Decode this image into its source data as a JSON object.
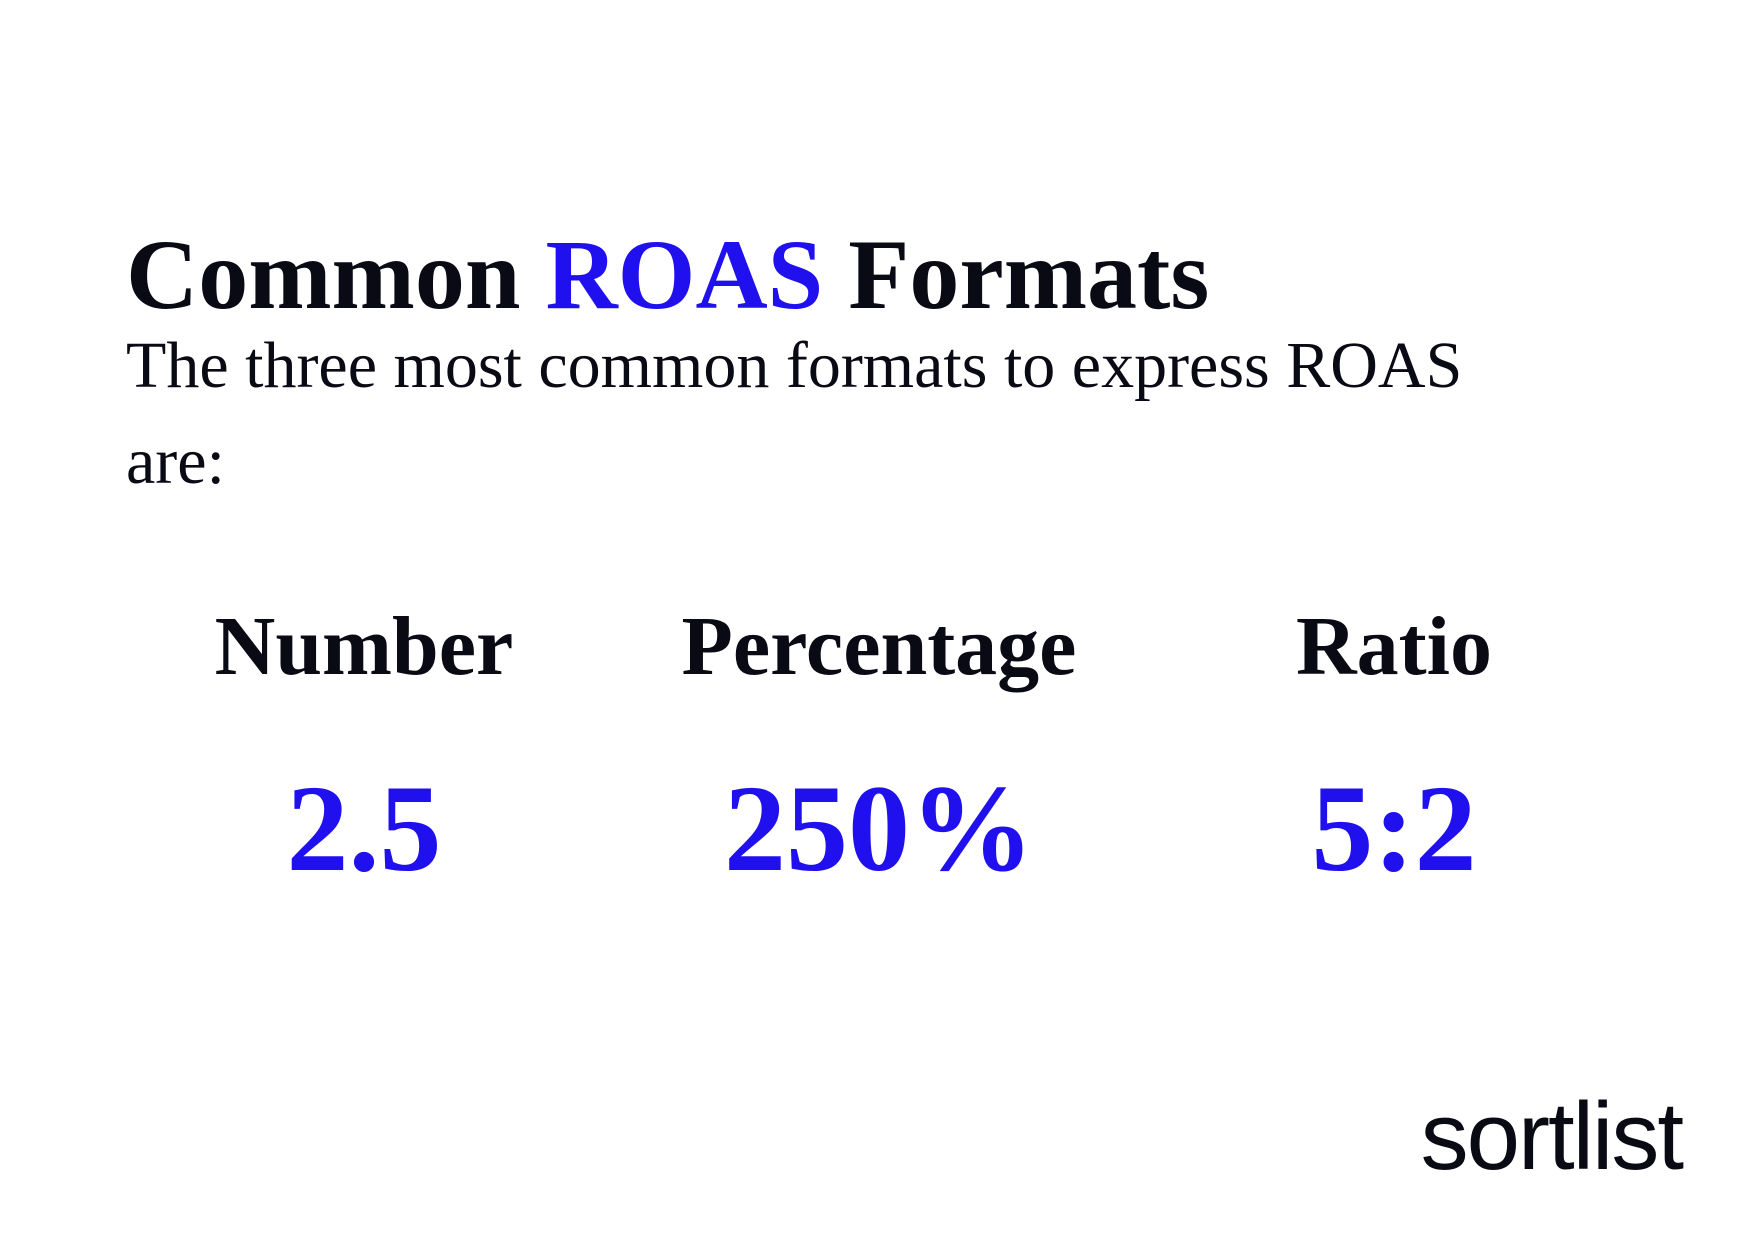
{
  "title": {
    "prefix": "Common ",
    "highlight": "ROAS",
    "suffix": " Formats"
  },
  "intro": "The three most common formats to express ROAS are:",
  "formats": [
    {
      "label": "Number",
      "value": "2.5"
    },
    {
      "label": "Percentage",
      "value": "250%"
    },
    {
      "label": "Ratio",
      "value": "5:2"
    }
  ],
  "logo": "sortlist",
  "colors": {
    "accent": "#2010ee",
    "text": "#0a0a14",
    "background": "#ffffff"
  }
}
